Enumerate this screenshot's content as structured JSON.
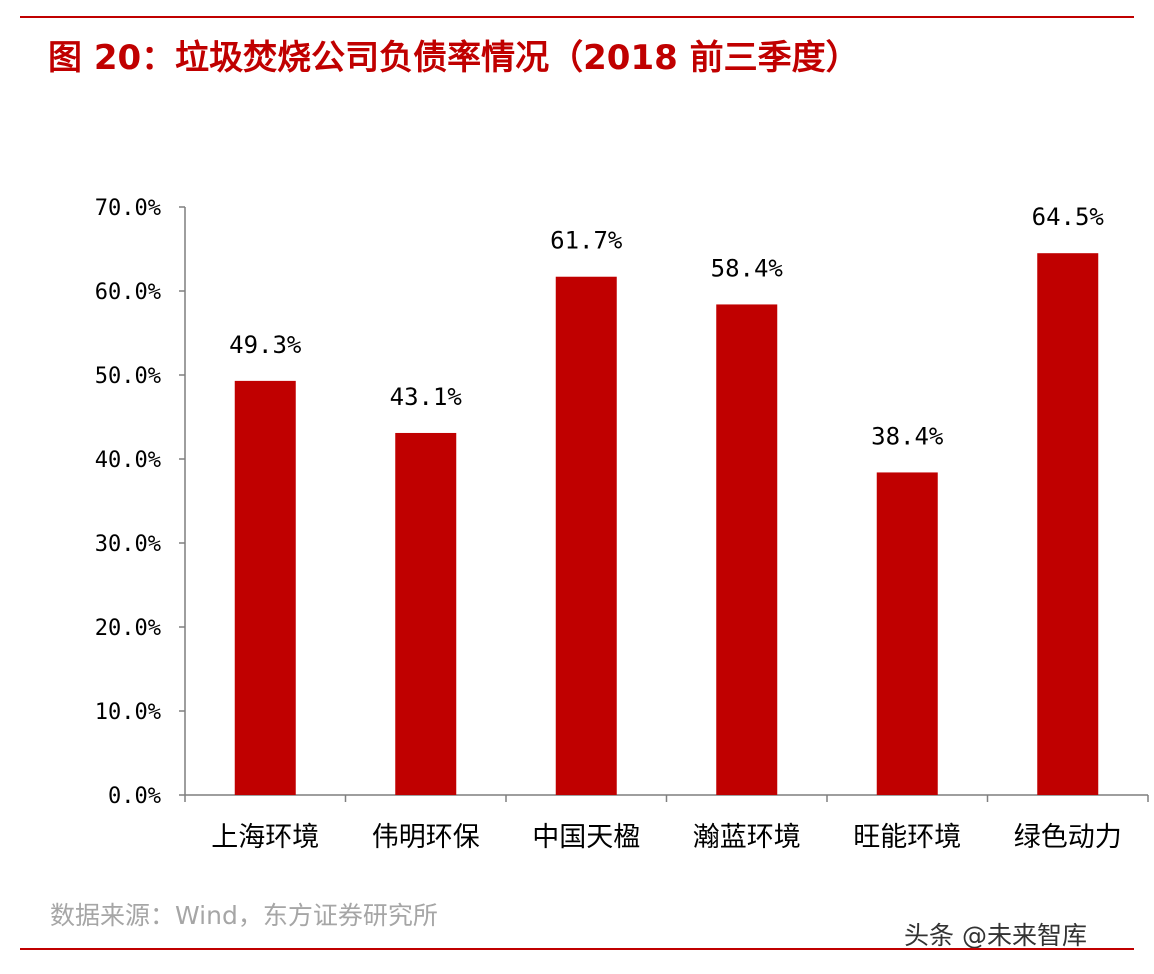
{
  "figure": {
    "title": "图 20：垃圾焚烧公司负债率情况（2018 前三季度）",
    "source": "数据来源：Wind，东方证券研究所",
    "watermark": "头条 @未来智库",
    "accent_color": "#c00000"
  },
  "chart_data": {
    "type": "bar",
    "title": "图 20：垃圾焚烧公司负债率情况（2018 前三季度）",
    "categories": [
      "上海环境",
      "伟明环保",
      "中国天楹",
      "瀚蓝环境",
      "旺能环境",
      "绿色动力"
    ],
    "values": [
      49.3,
      43.1,
      61.7,
      58.4,
      38.4,
      64.5
    ],
    "data_labels": [
      "49.3%",
      "43.1%",
      "61.7%",
      "58.4%",
      "38.4%",
      "64.5%"
    ],
    "y_ticks": [
      0,
      10,
      20,
      30,
      40,
      50,
      60,
      70
    ],
    "y_tick_labels": [
      "0.0%",
      "10.0%",
      "20.0%",
      "30.0%",
      "40.0%",
      "50.0%",
      "60.0%",
      "70.0%"
    ],
    "ylim": [
      0,
      70
    ],
    "xlabel": "",
    "ylabel": "",
    "grid": false,
    "legend": "none",
    "bar_color": "#c00000"
  }
}
